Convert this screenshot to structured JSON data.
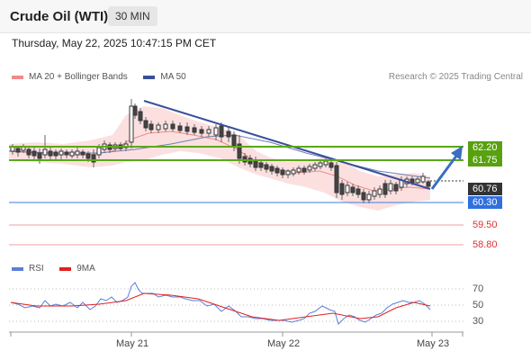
{
  "header": {
    "title": "Crude Oil (WTI)",
    "timeframe": "30 MIN"
  },
  "datetime": "Thursday, May 22, 2025 10:47:15 PM CET",
  "legend": {
    "ma20_label": "MA 20 + Bollinger Bands",
    "ma50_label": "MA 50",
    "credit": "Research © 2025 Trading Central"
  },
  "colors": {
    "ma20": "#f08a8a",
    "ma50": "#3a4f9a",
    "resistance": "#5aa817",
    "support": "#3a7be0",
    "pivot_dark": "#333333",
    "bands": "#fbd6d6",
    "rsi": "#5a7fd8",
    "rsi_ma": "#e02020"
  },
  "levels": {
    "r1": "62.20",
    "r2": "61.75",
    "current": "60.76",
    "pivot": "60.30",
    "s1": "59.50",
    "s2": "58.80"
  },
  "rsi_legend": {
    "rsi_label": "RSI",
    "ma_label": "9MA"
  },
  "rsi_axis": [
    "70",
    "50",
    "30"
  ],
  "x_axis": [
    "May 21",
    "May 22",
    "May 23"
  ],
  "chart_data": {
    "type": "candlestick",
    "price_series_approx": [
      61.9,
      61.85,
      61.8,
      61.75,
      61.7,
      61.65,
      61.7,
      61.75,
      61.8,
      61.85,
      61.9,
      61.95,
      62.0,
      62.1,
      63.3,
      63.1,
      62.9,
      62.95,
      62.85,
      62.8,
      62.75,
      62.7,
      62.65,
      62.6,
      62.55,
      62.5,
      62.45,
      62.4,
      62.3,
      62.2,
      61.8,
      61.7,
      61.6,
      61.5,
      61.45,
      61.4,
      61.45,
      61.5,
      61.55,
      61.65,
      61.7,
      61.75,
      61.8,
      61.7,
      61.6,
      61.4,
      61.2,
      60.8,
      60.6,
      60.5,
      60.4,
      60.3,
      60.5,
      60.7,
      60.8,
      60.85,
      60.9,
      60.95,
      61.0,
      60.9
    ],
    "rsi_series_approx": [
      50,
      48,
      47,
      46,
      45,
      46,
      48,
      50,
      52,
      54,
      56,
      58,
      62,
      70,
      64,
      60,
      58,
      57,
      56,
      55,
      54,
      53,
      53,
      52,
      51,
      50,
      48,
      46,
      44,
      40,
      36,
      35,
      34,
      33,
      33,
      34,
      35,
      38,
      42,
      46,
      50,
      52,
      54,
      50,
      44,
      38,
      30,
      34,
      36,
      40,
      42,
      45,
      48,
      50,
      52,
      54,
      56,
      54,
      52,
      50
    ],
    "levels": [
      62.2,
      61.75,
      60.76,
      60.3,
      59.5,
      58.8
    ]
  }
}
